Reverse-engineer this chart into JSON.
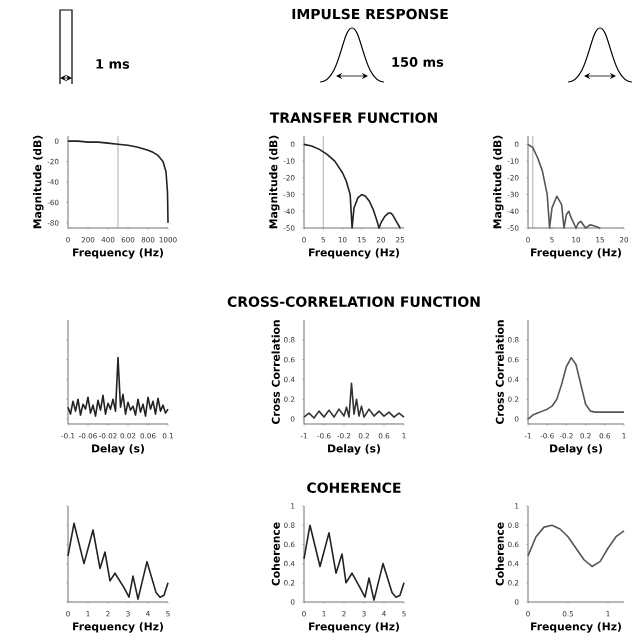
{
  "chart_data": [
    {
      "type": "other",
      "title": "IMPULSE RESPONSE",
      "annotations": [
        "1 ms",
        "150 ms"
      ]
    },
    {
      "type": "line",
      "ylabel": "Magnitude (dB)",
      "xlabel": "Frequency (Hz)",
      "color": "#222222",
      "xlim": [
        0,
        1000
      ],
      "ylim": [
        -85,
        5
      ],
      "xticks": [
        0,
        200,
        400,
        600,
        800,
        1000
      ],
      "yticks": [
        0,
        -20,
        -40,
        -60,
        -80
      ],
      "ref_lines": [
        {
          "axis": "x",
          "value": 500,
          "color": "#999999"
        }
      ],
      "x": [
        0,
        100,
        200,
        300,
        400,
        500,
        600,
        700,
        800,
        850,
        900,
        950,
        980,
        995,
        1000
      ],
      "values": [
        0,
        0,
        -1,
        -1,
        -2,
        -3,
        -4,
        -6,
        -9,
        -11,
        -14,
        -20,
        -30,
        -50,
        -80
      ]
    },
    {
      "type": "line",
      "title": "TRANSFER FUNCTION",
      "ylabel": "Magnitude (dB)",
      "xlabel": "Frequency (Hz)",
      "color": "#222222",
      "xlim": [
        0,
        26
      ],
      "ylim": [
        -50,
        5
      ],
      "xticks": [
        0,
        5,
        10,
        15,
        20,
        25
      ],
      "yticks": [
        0,
        -10,
        -20,
        -30,
        -40,
        -50
      ],
      "ref_lines": [
        {
          "axis": "x",
          "value": 5,
          "color": "#999999"
        }
      ],
      "x": [
        0,
        2,
        4,
        6,
        8,
        10,
        11,
        12,
        12.5,
        13,
        14,
        15,
        16,
        17,
        18,
        19,
        19.5,
        20,
        21,
        22,
        22.5,
        23,
        24,
        25
      ],
      "values": [
        0,
        -1,
        -3,
        -6,
        -10,
        -17,
        -22,
        -30,
        -50,
        -38,
        -32,
        -30,
        -31,
        -34,
        -39,
        -46,
        -50,
        -47,
        -43,
        -41,
        -41,
        -42,
        -46,
        -50
      ]
    },
    {
      "type": "line",
      "ylabel": "Magnitude (dB)",
      "xlabel": "Frequency (Hz)",
      "color": "#555555",
      "xlim": [
        0,
        20
      ],
      "ylim": [
        -50,
        5
      ],
      "xticks": [
        0,
        5,
        10,
        15,
        20
      ],
      "yticks": [
        0,
        -10,
        -20,
        -30,
        -40,
        -50
      ],
      "ref_lines": [
        {
          "axis": "x",
          "value": 1,
          "color": "#999999"
        }
      ],
      "x": [
        0,
        1,
        2,
        3,
        4,
        4.5,
        5,
        6,
        7,
        7.5,
        8,
        8.5,
        9,
        10,
        10.5,
        11,
        12,
        13,
        14,
        15
      ],
      "values": [
        0,
        -2,
        -8,
        -16,
        -30,
        -50,
        -38,
        -31,
        -36,
        -50,
        -42,
        -40,
        -44,
        -50,
        -47,
        -46,
        -50,
        -48,
        -49,
        -50
      ]
    },
    {
      "type": "line",
      "xlabel": "Delay (s)",
      "color": "#222222",
      "xlim": [
        -0.1,
        0.1
      ],
      "ylim": [
        -0.05,
        1
      ],
      "tick_labels": "x",
      "yticks": [
        0,
        0.2,
        0.4,
        0.6,
        0.8
      ],
      "xticks": [
        {
          "value": -0.1,
          "label": "-0.1"
        },
        {
          "value": -0.06,
          "label": "-0.06"
        },
        {
          "value": -0.02,
          "label": "-0.02"
        },
        {
          "value": 0.02,
          "label": "0.02"
        },
        {
          "value": 0.06,
          "label": "0.06"
        },
        {
          "value": 0.1,
          "label": "0.1"
        }
      ],
      "x": [
        -0.1,
        -0.095,
        -0.09,
        -0.085,
        -0.08,
        -0.075,
        -0.07,
        -0.065,
        -0.06,
        -0.055,
        -0.05,
        -0.045,
        -0.04,
        -0.035,
        -0.03,
        -0.025,
        -0.02,
        -0.015,
        -0.01,
        -0.005,
        0,
        0.005,
        0.01,
        0.015,
        0.02,
        0.025,
        0.03,
        0.035,
        0.04,
        0.045,
        0.05,
        0.055,
        0.06,
        0.065,
        0.07,
        0.075,
        0.08,
        0.085,
        0.09,
        0.095,
        0.1
      ],
      "values": [
        0.12,
        0.05,
        0.18,
        0.08,
        0.2,
        0.04,
        0.15,
        0.1,
        0.22,
        0.06,
        0.14,
        0.03,
        0.19,
        0.09,
        0.24,
        0.05,
        0.16,
        0.1,
        0.2,
        0.08,
        0.62,
        0.12,
        0.25,
        0.05,
        0.17,
        0.09,
        0.13,
        0.04,
        0.2,
        0.07,
        0.15,
        0.03,
        0.22,
        0.1,
        0.18,
        0.05,
        0.21,
        0.08,
        0.14,
        0.06,
        0.1
      ]
    },
    {
      "type": "line",
      "title": "CROSS-CORRELATION FUNCTION",
      "ylabel": "Cross Correlation",
      "xlabel": "Delay (s)",
      "color": "#333333",
      "xlim": [
        -1,
        1
      ],
      "ylim": [
        -0.05,
        1
      ],
      "yticks": [
        0,
        0.2,
        0.4,
        0.6,
        0.8
      ],
      "xticks": [
        -1,
        {
          "value": -0.6,
          "label": "-0.6"
        },
        {
          "value": -0.2,
          "label": "-0.2"
        },
        0.2,
        0.6,
        1
      ],
      "x": [
        -1,
        -0.9,
        -0.8,
        -0.7,
        -0.6,
        -0.5,
        -0.4,
        -0.3,
        -0.2,
        -0.15,
        -0.1,
        -0.05,
        0,
        0.05,
        0.1,
        0.15,
        0.2,
        0.3,
        0.4,
        0.5,
        0.6,
        0.7,
        0.8,
        0.9,
        1
      ],
      "values": [
        0.02,
        0.06,
        0.01,
        0.08,
        0.02,
        0.09,
        0.02,
        0.1,
        0.03,
        0.12,
        0.02,
        0.36,
        0.05,
        0.2,
        0.03,
        0.13,
        0.02,
        0.1,
        0.03,
        0.08,
        0.03,
        0.07,
        0.02,
        0.06,
        0.02
      ]
    },
    {
      "type": "line",
      "ylabel": "Cross Correlation",
      "xlabel": "Delay (s)",
      "color": "#555555",
      "xlim": [
        -1,
        1
      ],
      "ylim": [
        -0.05,
        1
      ],
      "yticks": [
        0,
        0.2,
        0.4,
        0.6,
        0.8
      ],
      "xticks": [
        -1,
        {
          "value": -0.6,
          "label": "-0.6"
        },
        {
          "value": -0.2,
          "label": "-0.2"
        },
        0.2,
        0.6,
        1
      ],
      "x": [
        -1,
        -0.9,
        -0.8,
        -0.7,
        -0.6,
        -0.5,
        -0.4,
        -0.3,
        -0.2,
        -0.1,
        0,
        0.1,
        0.2,
        0.3,
        0.4,
        0.5,
        0.6,
        0.8,
        1
      ],
      "values": [
        0,
        0.04,
        0.06,
        0.08,
        0.1,
        0.13,
        0.2,
        0.35,
        0.53,
        0.62,
        0.55,
        0.35,
        0.15,
        0.08,
        0.07,
        0.07,
        0.07,
        0.07,
        0.07
      ]
    },
    {
      "type": "line",
      "xlabel": "Frequency (Hz)",
      "color": "#222222",
      "xlim": [
        0,
        5
      ],
      "ylim": [
        0,
        1
      ],
      "tick_labels": "x",
      "yticks": [
        0,
        0.2,
        0.4,
        0.6,
        0.8,
        1
      ],
      "xticks": [
        0,
        1,
        2,
        3,
        4,
        5
      ],
      "x": [
        0,
        0.3,
        0.8,
        1.25,
        1.6,
        1.85,
        2.1,
        2.35,
        2.8,
        3.05,
        3.25,
        3.5,
        3.95,
        4.4,
        4.6,
        4.8,
        5
      ],
      "values": [
        0.48,
        0.82,
        0.4,
        0.75,
        0.35,
        0.52,
        0.22,
        0.3,
        0.15,
        0.05,
        0.27,
        0.03,
        0.42,
        0.1,
        0.05,
        0.07,
        0.2
      ]
    },
    {
      "type": "line",
      "title": "COHERENCE",
      "ylabel": "Coherence",
      "xlabel": "Frequency (Hz)",
      "color": "#222222",
      "xlim": [
        0,
        5
      ],
      "ylim": [
        0,
        1
      ],
      "yticks": [
        0,
        0.2,
        0.4,
        0.6,
        0.8,
        1
      ],
      "xticks": [
        0,
        1,
        2,
        3,
        4,
        5
      ],
      "x": [
        0,
        0.3,
        0.8,
        1.25,
        1.6,
        1.9,
        2.1,
        2.4,
        2.8,
        3.05,
        3.25,
        3.5,
        3.95,
        4.4,
        4.6,
        4.8,
        5
      ],
      "values": [
        0.45,
        0.8,
        0.37,
        0.72,
        0.3,
        0.5,
        0.2,
        0.3,
        0.15,
        0.05,
        0.25,
        0.02,
        0.4,
        0.1,
        0.05,
        0.07,
        0.2
      ]
    },
    {
      "type": "line",
      "ylabel": "Coherence",
      "xlabel": "Frequency (Hz)",
      "color": "#555555",
      "xlim": [
        0,
        1.2
      ],
      "ylim": [
        0,
        1
      ],
      "yticks": [
        0,
        0.2,
        0.4,
        0.6,
        0.8,
        1
      ],
      "xticks": [
        0,
        0.5,
        1
      ],
      "x": [
        0,
        0.1,
        0.2,
        0.3,
        0.4,
        0.5,
        0.6,
        0.7,
        0.8,
        0.9,
        1,
        1.1,
        1.2
      ],
      "values": [
        0.48,
        0.68,
        0.78,
        0.8,
        0.76,
        0.68,
        0.56,
        0.44,
        0.37,
        0.42,
        0.56,
        0.68,
        0.74
      ]
    }
  ]
}
